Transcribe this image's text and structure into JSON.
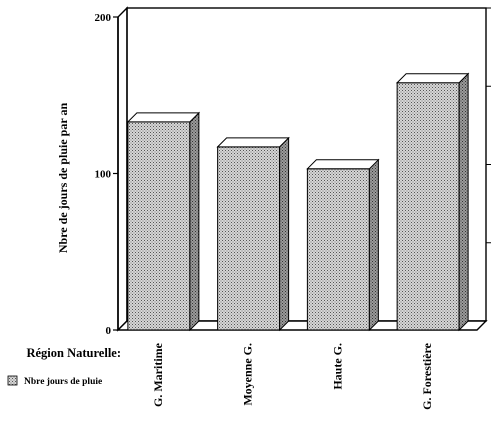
{
  "chart_data": {
    "type": "bar",
    "title": "",
    "xlabel": "Région Naturelle:",
    "ylabel": "Nbre de jours de pluie par an",
    "categories": [
      "G. Maritime",
      "Moyenne G.",
      "Haute G.",
      "G. Forestière"
    ],
    "series": [
      {
        "name": "Nbre jours de pluie",
        "values": [
          133,
          117,
          103,
          158
        ]
      }
    ],
    "ylim": [
      0,
      200
    ],
    "yticks": [
      "0",
      "100",
      "200"
    ],
    "grid": false,
    "style": "3d-bars-with-dotted-fill",
    "colors": {
      "bar_face": "#bdbdbd",
      "bar_top": "#ffffff",
      "bar_side": "#8a8a8a",
      "axis": "#000000"
    },
    "legend_position": "bottom-left"
  }
}
